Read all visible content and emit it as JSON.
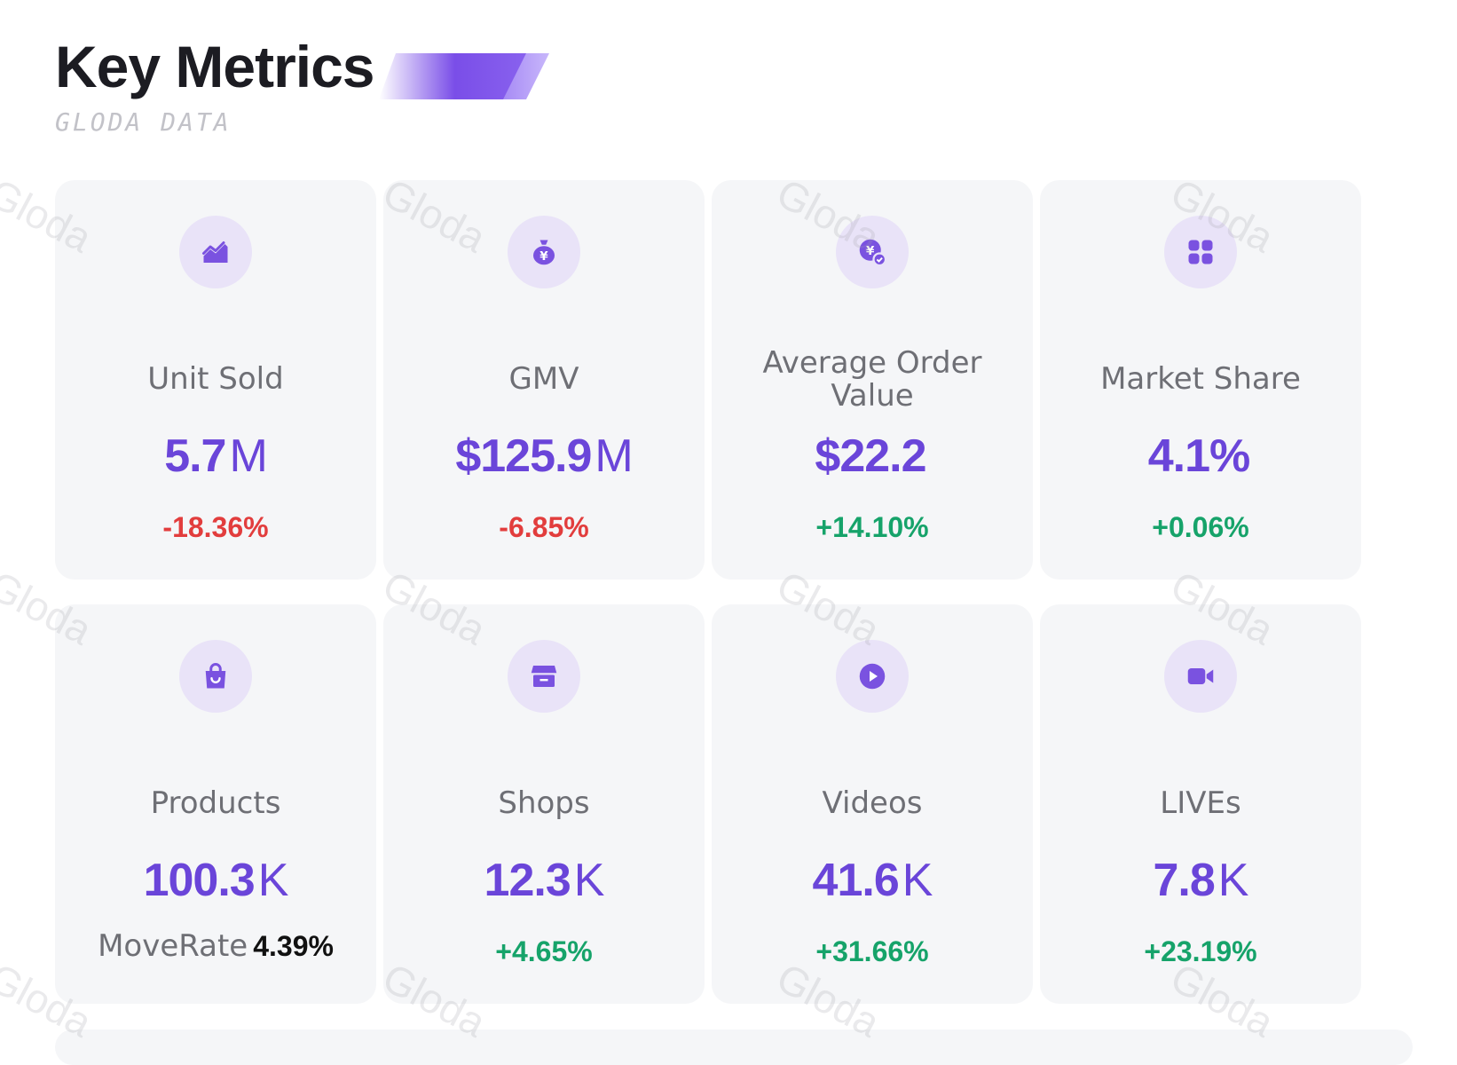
{
  "header": {
    "title": "Key Metrics",
    "subtitle": "GLODA DATA"
  },
  "watermark_text": "Gloda",
  "colors": {
    "accent": "#6a45d9",
    "negative": "#e23d3d",
    "positive": "#16a36a",
    "card_bg": "#f5f6f8",
    "icon_bg": "#e9e3f8"
  },
  "metrics": [
    {
      "icon": "trend-chart-icon",
      "label": "Unit Sold",
      "value": "5.7",
      "unit": "M",
      "change": "-18.36%"
    },
    {
      "icon": "money-bag-icon",
      "label": "GMV",
      "value": "$125.9",
      "unit": "M",
      "change": "-6.85%"
    },
    {
      "icon": "yen-check-icon",
      "label": "Average Order Value",
      "value": "$22.2",
      "unit": "",
      "change": "+14.10%"
    },
    {
      "icon": "grid-icon",
      "label": "Market Share",
      "value": "4.1%",
      "unit": "",
      "change": "+0.06%"
    },
    {
      "icon": "shopping-bag-icon",
      "label": "Products",
      "value": "100.3",
      "unit": "K",
      "moverate_label": "MoveRate",
      "moverate_value": "4.39%"
    },
    {
      "icon": "shop-icon",
      "label": "Shops",
      "value": "12.3",
      "unit": "K",
      "change": "+4.65%"
    },
    {
      "icon": "play-icon",
      "label": "Videos",
      "value": "41.6",
      "unit": "K",
      "change": "+31.66%"
    },
    {
      "icon": "video-camera-icon",
      "label": "LIVEs",
      "value": "7.8",
      "unit": "K",
      "change": "+23.19%"
    }
  ]
}
